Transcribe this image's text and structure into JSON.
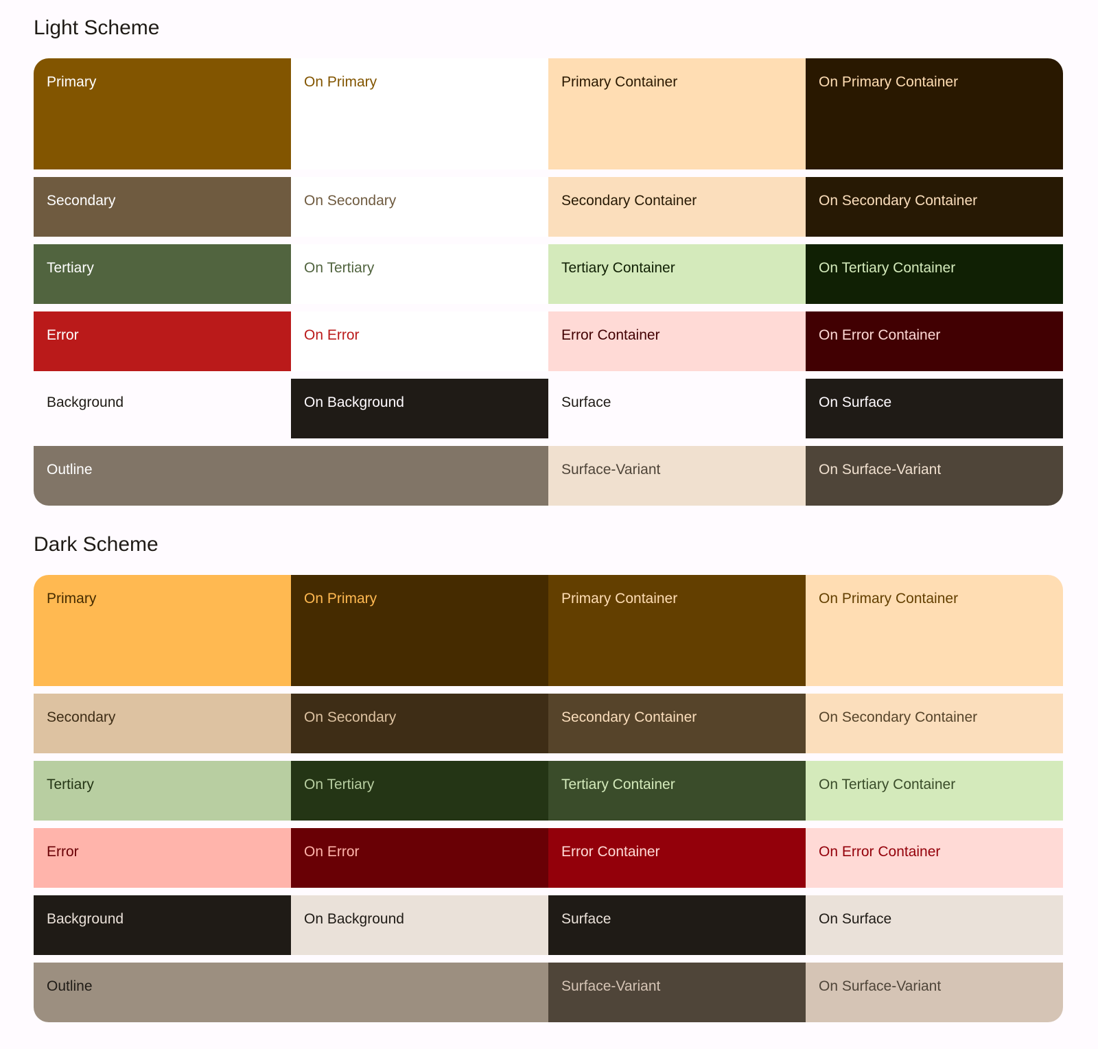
{
  "light": {
    "title": "Light Scheme",
    "rows": [
      [
        {
          "label": "Primary",
          "bg": "#825500",
          "fg": "#ffffff"
        },
        {
          "label": "On Primary",
          "bg": "#ffffff",
          "fg": "#825500"
        },
        {
          "label": "Primary Container",
          "bg": "#ffddb3",
          "fg": "#291800"
        },
        {
          "label": "On Primary Container",
          "bg": "#291800",
          "fg": "#ffddb3"
        }
      ],
      [
        {
          "label": "Secondary",
          "bg": "#6f5b40",
          "fg": "#ffffff"
        },
        {
          "label": "On Secondary",
          "bg": "#ffffff",
          "fg": "#6f5b40"
        },
        {
          "label": "Secondary Container",
          "bg": "#fbdebc",
          "fg": "#271904"
        },
        {
          "label": "On Secondary Container",
          "bg": "#271904",
          "fg": "#fbdebc"
        }
      ],
      [
        {
          "label": "Tertiary",
          "bg": "#51643f",
          "fg": "#ffffff"
        },
        {
          "label": "On Tertiary",
          "bg": "#ffffff",
          "fg": "#51643f"
        },
        {
          "label": "Tertiary Container",
          "bg": "#d4eabb",
          "fg": "#102004"
        },
        {
          "label": "On Tertiary Container",
          "bg": "#102004",
          "fg": "#d4eabb"
        }
      ],
      [
        {
          "label": "Error",
          "bg": "#ba1a1a",
          "fg": "#ffffff"
        },
        {
          "label": "On Error",
          "bg": "#ffffff",
          "fg": "#ba1a1a"
        },
        {
          "label": "Error Container",
          "bg": "#ffdad6",
          "fg": "#410002"
        },
        {
          "label": "On Error Container",
          "bg": "#410002",
          "fg": "#ffdad6"
        }
      ],
      [
        {
          "label": "Background",
          "bg": "#fffbff",
          "fg": "#1f1b16"
        },
        {
          "label": "On Background",
          "bg": "#1f1b16",
          "fg": "#fffbff"
        },
        {
          "label": "Surface",
          "bg": "#fffbff",
          "fg": "#1f1b16"
        },
        {
          "label": "On Surface",
          "bg": "#1f1b16",
          "fg": "#fffbff"
        }
      ],
      [
        {
          "label": "Outline",
          "bg": "#817567",
          "fg": "#ffffff",
          "span": 2
        },
        {
          "label": "Surface-Variant",
          "bg": "#f0e0cf",
          "fg": "#4f4539"
        },
        {
          "label": "On Surface-Variant",
          "bg": "#4f4539",
          "fg": "#f0e0cf"
        }
      ]
    ]
  },
  "dark": {
    "title": "Dark Scheme",
    "rows": [
      [
        {
          "label": "Primary",
          "bg": "#ffb951",
          "fg": "#452b00"
        },
        {
          "label": "On Primary",
          "bg": "#452b00",
          "fg": "#ffb951"
        },
        {
          "label": "Primary Container",
          "bg": "#633f00",
          "fg": "#ffddb3"
        },
        {
          "label": "On Primary Container",
          "bg": "#ffddb3",
          "fg": "#633f00"
        }
      ],
      [
        {
          "label": "Secondary",
          "bg": "#ddc2a1",
          "fg": "#3e2d16"
        },
        {
          "label": "On Secondary",
          "bg": "#3e2d16",
          "fg": "#ddc2a1"
        },
        {
          "label": "Secondary Container",
          "bg": "#56442a",
          "fg": "#fbdebc"
        },
        {
          "label": "On Secondary Container",
          "bg": "#fbdebc",
          "fg": "#56442a"
        }
      ],
      [
        {
          "label": "Tertiary",
          "bg": "#b8cea1",
          "fg": "#243515"
        },
        {
          "label": "On Tertiary",
          "bg": "#243515",
          "fg": "#b8cea1"
        },
        {
          "label": "Tertiary Container",
          "bg": "#3a4c2a",
          "fg": "#d4eabb"
        },
        {
          "label": "On Tertiary Container",
          "bg": "#d4eabb",
          "fg": "#3a4c2a"
        }
      ],
      [
        {
          "label": "Error",
          "bg": "#ffb4ab",
          "fg": "#690005"
        },
        {
          "label": "On Error",
          "bg": "#690005",
          "fg": "#ffb4ab"
        },
        {
          "label": "Error Container",
          "bg": "#93000a",
          "fg": "#ffdad6"
        },
        {
          "label": "On Error Container",
          "bg": "#ffdad6",
          "fg": "#93000a"
        }
      ],
      [
        {
          "label": "Background",
          "bg": "#1f1b16",
          "fg": "#eae1d9"
        },
        {
          "label": "On Background",
          "bg": "#eae1d9",
          "fg": "#1f1b16"
        },
        {
          "label": "Surface",
          "bg": "#1f1b16",
          "fg": "#eae1d9"
        },
        {
          "label": "On Surface",
          "bg": "#eae1d9",
          "fg": "#1f1b16"
        }
      ],
      [
        {
          "label": "Outline",
          "bg": "#9c8f80",
          "fg": "#1f1b16",
          "span": 2
        },
        {
          "label": "Surface-Variant",
          "bg": "#4f4539",
          "fg": "#d5c4b5"
        },
        {
          "label": "On Surface-Variant",
          "bg": "#d5c4b5",
          "fg": "#4f4539"
        }
      ]
    ]
  }
}
